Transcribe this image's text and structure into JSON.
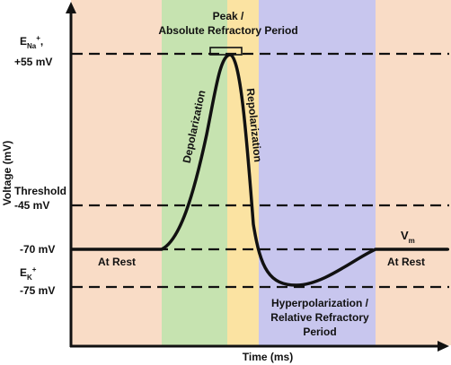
{
  "colors": {
    "rest": "#f9dcc6",
    "depolarization": "#c6e3b0",
    "repolarization": "#fbe3a2",
    "hyperpolarization": "#c8c6ee",
    "line": "#111111"
  },
  "axes": {
    "y_label": "Voltage (mV)",
    "x_label": "Time (ms)"
  },
  "labels": {
    "ena_main": "E",
    "ena_sub": "Na",
    "ena_sup": "+",
    "ena_tail": ",",
    "peak_mv": "+55 mV",
    "threshold": "Threshold",
    "threshold_mv": "-45 mV",
    "rest_mv": "-70 mV",
    "ek_main": "E",
    "ek_sub": "K",
    "ek_sup": "+",
    "ek_mv": "-75 mV",
    "peak_line1": "Peak /",
    "peak_line2": "Absolute Refractory Period",
    "depolarization": "Depolarization",
    "repolarization": "Repolarization",
    "at_rest_left": "At Rest",
    "at_rest_right": "At Rest",
    "vm_main": "V",
    "vm_sub": "m",
    "hyper_line1": "Hyperpolarization /",
    "hyper_line2": "Relative Refractory",
    "hyper_line3": "Period"
  }
}
